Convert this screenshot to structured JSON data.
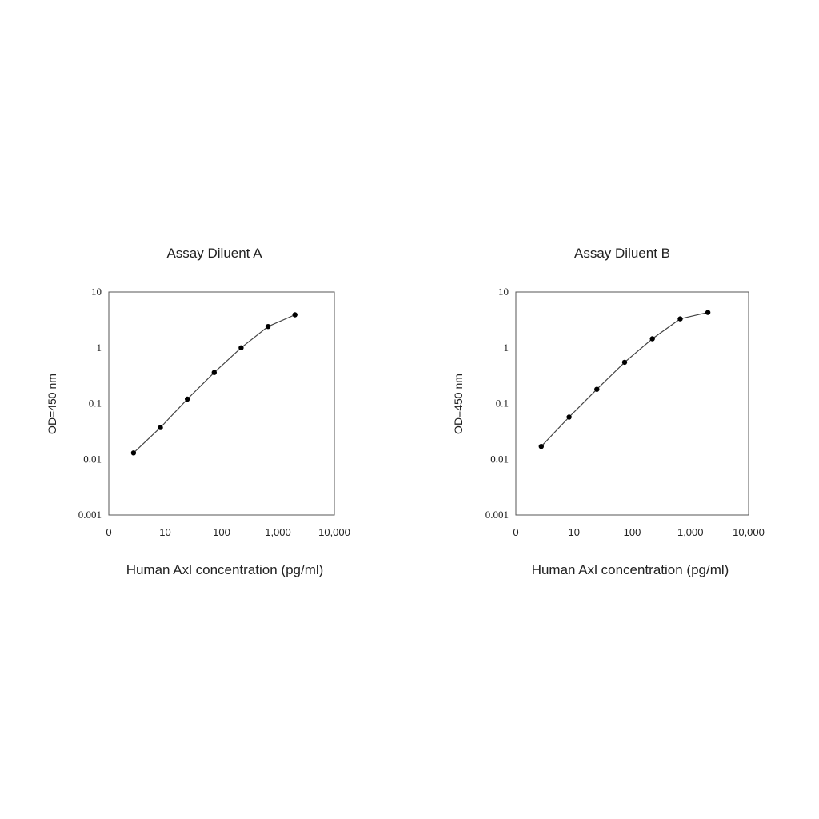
{
  "chart_data": [
    {
      "type": "line",
      "title": "Assay Diluent A",
      "xlabel": "Human Axl concentration (pg/ml)",
      "ylabel": "OD=450 nm",
      "x_scale": "log",
      "y_scale": "log",
      "xlim": [
        1,
        10000
      ],
      "ylim": [
        0.001,
        10
      ],
      "x_ticks": [
        "0",
        "10",
        "100",
        "1,000",
        "10,000"
      ],
      "y_ticks": [
        "0.001",
        "0.01",
        "0.1",
        "1",
        "10"
      ],
      "grid": false,
      "series": [
        {
          "x": [
            2.74,
            8.23,
            24.7,
            74.1,
            222,
            667,
            2000
          ],
          "y": [
            0.013,
            0.037,
            0.12,
            0.36,
            1.0,
            2.4,
            3.9
          ]
        }
      ]
    },
    {
      "type": "line",
      "title": "Assay Diluent B",
      "xlabel": "Human Axl concentration (pg/ml)",
      "ylabel": "OD=450 nm",
      "x_scale": "log",
      "y_scale": "log",
      "xlim": [
        1,
        10000
      ],
      "ylim": [
        0.001,
        10
      ],
      "x_ticks": [
        "0",
        "10",
        "100",
        "1,000",
        "10,000"
      ],
      "y_ticks": [
        "0.001",
        "0.01",
        "0.1",
        "1",
        "10"
      ],
      "grid": false,
      "series": [
        {
          "x": [
            2.74,
            8.23,
            24.7,
            74.1,
            222,
            667,
            2000
          ],
          "y": [
            0.017,
            0.057,
            0.18,
            0.55,
            1.45,
            3.3,
            4.3
          ]
        }
      ]
    }
  ]
}
